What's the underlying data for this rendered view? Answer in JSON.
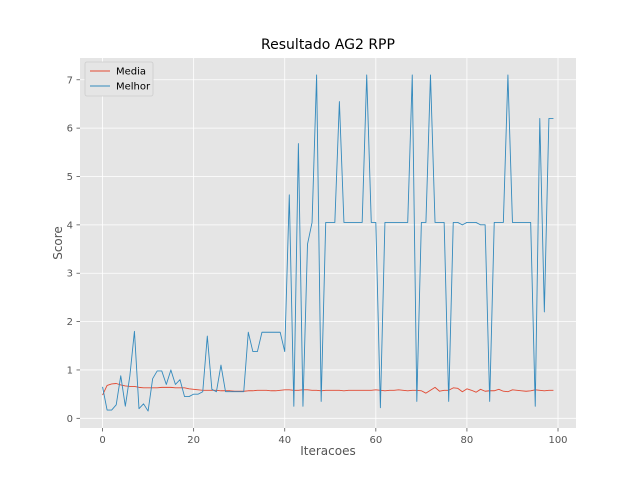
{
  "chart_data": {
    "type": "line",
    "title": "Resultado AG2 RPP",
    "xlabel": "Iteracoes",
    "ylabel": "Score",
    "xlim": [
      -4.95,
      103.95
    ],
    "ylim": [
      -0.2,
      7.45
    ],
    "xticks": [
      0,
      20,
      40,
      60,
      80,
      100
    ],
    "yticks": [
      0,
      1,
      2,
      3,
      4,
      5,
      6,
      7
    ],
    "grid": true,
    "legend_position": "top-left",
    "series": [
      {
        "name": "Media",
        "color": "#e24a33",
        "values": [
          0.48,
          0.68,
          0.71,
          0.72,
          0.69,
          0.67,
          0.66,
          0.66,
          0.64,
          0.63,
          0.63,
          0.63,
          0.63,
          0.64,
          0.64,
          0.64,
          0.63,
          0.63,
          0.63,
          0.61,
          0.6,
          0.59,
          0.58,
          0.58,
          0.58,
          0.58,
          0.57,
          0.57,
          0.57,
          0.56,
          0.56,
          0.56,
          0.57,
          0.57,
          0.58,
          0.58,
          0.58,
          0.57,
          0.57,
          0.58,
          0.59,
          0.59,
          0.58,
          0.58,
          0.59,
          0.59,
          0.58,
          0.58,
          0.57,
          0.58,
          0.58,
          0.58,
          0.58,
          0.57,
          0.58,
          0.58,
          0.58,
          0.58,
          0.58,
          0.58,
          0.59,
          0.58,
          0.57,
          0.58,
          0.58,
          0.59,
          0.58,
          0.57,
          0.58,
          0.58,
          0.57,
          0.52,
          0.58,
          0.64,
          0.56,
          0.58,
          0.58,
          0.63,
          0.62,
          0.55,
          0.61,
          0.58,
          0.54,
          0.6,
          0.56,
          0.57,
          0.57,
          0.6,
          0.56,
          0.55,
          0.59,
          0.58,
          0.57,
          0.56,
          0.57,
          0.59,
          0.58,
          0.57,
          0.58,
          0.58
        ]
      },
      {
        "name": "Melhor",
        "color": "#348abd",
        "values": [
          0.65,
          0.17,
          0.17,
          0.28,
          0.88,
          0.25,
          0.88,
          1.8,
          0.2,
          0.3,
          0.15,
          0.82,
          0.98,
          0.98,
          0.7,
          1.0,
          0.7,
          0.8,
          0.45,
          0.45,
          0.5,
          0.5,
          0.55,
          1.7,
          0.6,
          0.55,
          1.1,
          0.55,
          0.55,
          0.55,
          0.55,
          0.55,
          1.78,
          1.38,
          1.38,
          1.78,
          1.78,
          1.78,
          1.78,
          1.78,
          1.38,
          4.62,
          0.25,
          5.68,
          0.25,
          3.6,
          4.05,
          7.1,
          0.35,
          4.05,
          4.05,
          4.05,
          6.55,
          4.05,
          4.05,
          4.05,
          4.05,
          4.05,
          7.1,
          4.05,
          4.05,
          0.22,
          4.05,
          4.05,
          4.05,
          4.05,
          4.05,
          4.05,
          7.1,
          0.35,
          4.05,
          4.05,
          7.1,
          4.05,
          4.05,
          4.05,
          0.35,
          4.05,
          4.05,
          4.0,
          4.05,
          4.05,
          4.05,
          4.0,
          4.0,
          0.35,
          4.05,
          4.05,
          4.05,
          7.1,
          4.05,
          4.05,
          4.05,
          4.05,
          4.05,
          0.25,
          6.2,
          2.2,
          6.2,
          6.2
        ]
      }
    ]
  }
}
